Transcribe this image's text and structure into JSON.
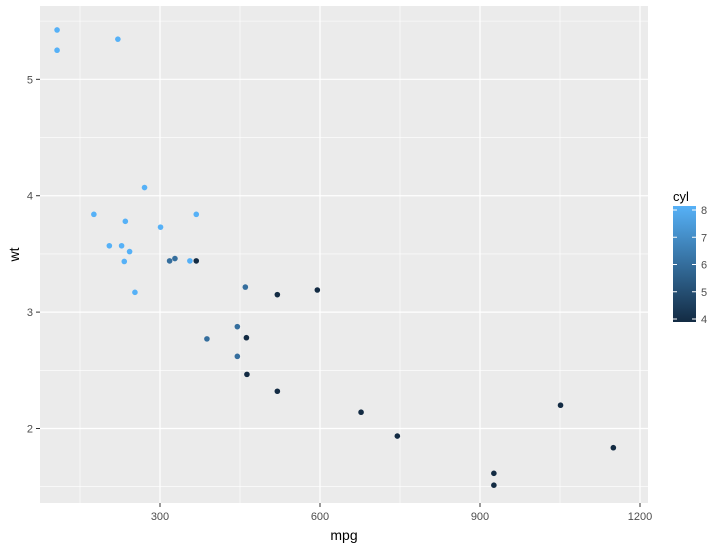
{
  "chart_data": {
    "type": "scatter",
    "xlabel": "mpg",
    "ylabel": "wt",
    "xlim": [
      75,
      1215
    ],
    "ylim": [
      1.36,
      5.63
    ],
    "x_ticks": [
      300,
      600,
      900,
      1200
    ],
    "x_tick_labels": [
      "300",
      "600",
      "900",
      "1200"
    ],
    "y_ticks": [
      2,
      3,
      4,
      5
    ],
    "y_tick_labels": [
      "2",
      "3",
      "4",
      "5"
    ],
    "grid": true,
    "background": "#ebebeb",
    "legend": {
      "title": "cyl",
      "placement": "right",
      "type": "colorbar",
      "range": [
        4,
        8
      ],
      "ticks": [
        4,
        5,
        6,
        7,
        8
      ],
      "tick_labels": [
        "4",
        "5",
        "6",
        "7",
        "8"
      ],
      "low_color": "#132b43",
      "high_color": "#56b1f7"
    },
    "points": [
      {
        "x": 107,
        "y": 5.424,
        "cyl": 8
      },
      {
        "x": 107,
        "y": 5.25,
        "cyl": 8
      },
      {
        "x": 221,
        "y": 5.345,
        "cyl": 8
      },
      {
        "x": 271,
        "y": 4.07,
        "cyl": 8
      },
      {
        "x": 176,
        "y": 3.84,
        "cyl": 8
      },
      {
        "x": 235,
        "y": 3.78,
        "cyl": 8
      },
      {
        "x": 301,
        "y": 3.73,
        "cyl": 8
      },
      {
        "x": 368,
        "y": 3.84,
        "cyl": 8
      },
      {
        "x": 205,
        "y": 3.57,
        "cyl": 8
      },
      {
        "x": 228,
        "y": 3.57,
        "cyl": 8
      },
      {
        "x": 243,
        "y": 3.52,
        "cyl": 8
      },
      {
        "x": 233,
        "y": 3.435,
        "cyl": 8
      },
      {
        "x": 356,
        "y": 3.44,
        "cyl": 8
      },
      {
        "x": 253,
        "y": 3.17,
        "cyl": 8
      },
      {
        "x": 318,
        "y": 3.44,
        "cyl": 6
      },
      {
        "x": 328,
        "y": 3.46,
        "cyl": 6
      },
      {
        "x": 368,
        "y": 3.44,
        "cyl": 4
      },
      {
        "x": 460,
        "y": 3.215,
        "cyl": 6
      },
      {
        "x": 520,
        "y": 3.15,
        "cyl": 4
      },
      {
        "x": 595,
        "y": 3.19,
        "cyl": 4
      },
      {
        "x": 388,
        "y": 2.77,
        "cyl": 6
      },
      {
        "x": 445,
        "y": 2.875,
        "cyl": 6
      },
      {
        "x": 462,
        "y": 2.78,
        "cyl": 4
      },
      {
        "x": 445,
        "y": 2.62,
        "cyl": 6
      },
      {
        "x": 463,
        "y": 2.465,
        "cyl": 4
      },
      {
        "x": 520,
        "y": 2.32,
        "cyl": 4
      },
      {
        "x": 677,
        "y": 2.14,
        "cyl": 4
      },
      {
        "x": 745,
        "y": 1.935,
        "cyl": 4
      },
      {
        "x": 1051,
        "y": 2.2,
        "cyl": 4
      },
      {
        "x": 1150,
        "y": 1.835,
        "cyl": 4
      },
      {
        "x": 926,
        "y": 1.615,
        "cyl": 4
      },
      {
        "x": 926,
        "y": 1.513,
        "cyl": 4
      }
    ]
  }
}
